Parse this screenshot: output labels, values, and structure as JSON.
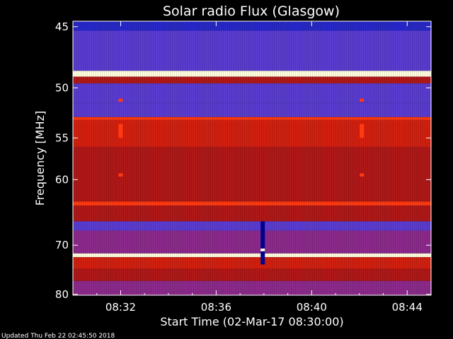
{
  "chart_data": {
    "type": "heatmap",
    "title": "Solar radio Flux (Glasgow)",
    "xlabel": "Start Time (02-Mar-17 08:30:00)",
    "ylabel": "Frequency [MHz]",
    "x_ticks": [
      "08:32",
      "08:36",
      "08:40",
      "08:44"
    ],
    "x_tick_minutes": [
      2,
      6,
      10,
      14
    ],
    "xlim_minutes": [
      0,
      15
    ],
    "y_ticks": [
      45,
      50,
      55,
      60,
      70,
      80
    ],
    "ylim": [
      44.6,
      80.2
    ],
    "y_scale": "reciprocal (1/frequency)",
    "colormap": [
      "#00008b",
      "#2828c8",
      "#5a3cd0",
      "#8c2a8c",
      "#b01818",
      "#d22010",
      "#ff3a10",
      "#ffc040",
      "#ffffe0"
    ],
    "frequency_bands": [
      {
        "from": 44.6,
        "to": 45.3,
        "level": 0.1
      },
      {
        "from": 45.3,
        "to": 48.5,
        "level": 0.22
      },
      {
        "from": 48.5,
        "to": 49.0,
        "level": 0.95
      },
      {
        "from": 49.0,
        "to": 49.6,
        "level": 0.45
      },
      {
        "from": 49.6,
        "to": 51.4,
        "level": 0.2
      },
      {
        "from": 51.4,
        "to": 52.8,
        "level": 0.3
      },
      {
        "from": 52.8,
        "to": 53.1,
        "level": 0.8
      },
      {
        "from": 53.1,
        "to": 56.0,
        "level": 0.62
      },
      {
        "from": 56.0,
        "to": 63.0,
        "level": 0.55
      },
      {
        "from": 63.0,
        "to": 63.6,
        "level": 0.7
      },
      {
        "from": 63.6,
        "to": 66.0,
        "level": 0.45
      },
      {
        "from": 66.0,
        "to": 67.5,
        "level": 0.25
      },
      {
        "from": 67.5,
        "to": 71.5,
        "level": 0.4
      },
      {
        "from": 71.5,
        "to": 72.2,
        "level": 0.95
      },
      {
        "from": 72.2,
        "to": 74.5,
        "level": 0.6
      },
      {
        "from": 74.5,
        "to": 77.0,
        "level": 0.45
      },
      {
        "from": 77.0,
        "to": 80.2,
        "level": 0.35
      }
    ],
    "events": [
      {
        "minute": 2.0,
        "freq_from": 51.0,
        "freq_to": 51.3,
        "level": 0.75
      },
      {
        "minute": 2.0,
        "freq_from": 53.5,
        "freq_to": 55.0,
        "level": 0.7
      },
      {
        "minute": 2.0,
        "freq_from": 59.2,
        "freq_to": 59.6,
        "level": 0.75
      },
      {
        "minute": 12.1,
        "freq_from": 51.0,
        "freq_to": 51.3,
        "level": 0.75
      },
      {
        "minute": 12.1,
        "freq_from": 53.5,
        "freq_to": 55.0,
        "level": 0.7
      },
      {
        "minute": 12.1,
        "freq_from": 59.2,
        "freq_to": 59.6,
        "level": 0.75
      },
      {
        "minute": 7.95,
        "freq_from": 66.0,
        "freq_to": 73.6,
        "level": 0.0
      },
      {
        "minute": 7.95,
        "freq_from": 70.6,
        "freq_to": 71.1,
        "level": 1.0
      }
    ]
  },
  "footer": {
    "updated": "Updated Thu Feb 22 02:45:50 2018"
  }
}
